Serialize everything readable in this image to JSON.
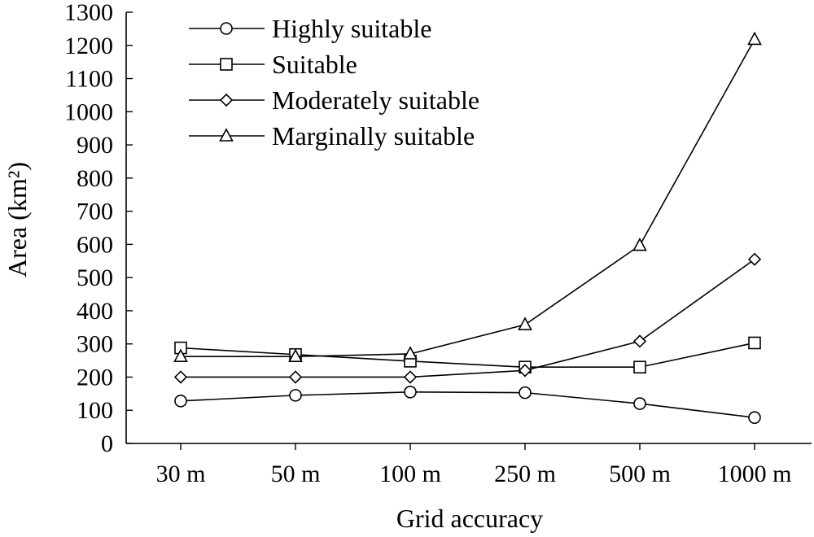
{
  "chart_data": {
    "type": "line",
    "xlabel": "Grid accuracy",
    "ylabel": "Area (km²)",
    "ylim": [
      0,
      1300
    ],
    "yticks": [
      0,
      100,
      200,
      300,
      400,
      500,
      600,
      700,
      800,
      900,
      1000,
      1100,
      1200,
      1300
    ],
    "grid": false,
    "legend_position": "top-left",
    "categories": [
      "30 m",
      "50 m",
      "100 m",
      "250 m",
      "500 m",
      "1000 m"
    ],
    "series": [
      {
        "name": "Highly suitable",
        "marker": "circle",
        "values": [
          128,
          145,
          155,
          153,
          120,
          78
        ]
      },
      {
        "name": "Suitable",
        "marker": "square",
        "values": [
          288,
          268,
          248,
          230,
          230,
          303
        ]
      },
      {
        "name": "Moderately suitable",
        "marker": "diamond",
        "values": [
          200,
          200,
          200,
          220,
          308,
          555
        ]
      },
      {
        "name": "Marginally suitable",
        "marker": "triangle",
        "values": [
          262,
          262,
          270,
          358,
          597,
          1218
        ]
      }
    ],
    "colors": {
      "line": "#000000",
      "marker_fill": "#ffffff"
    }
  }
}
